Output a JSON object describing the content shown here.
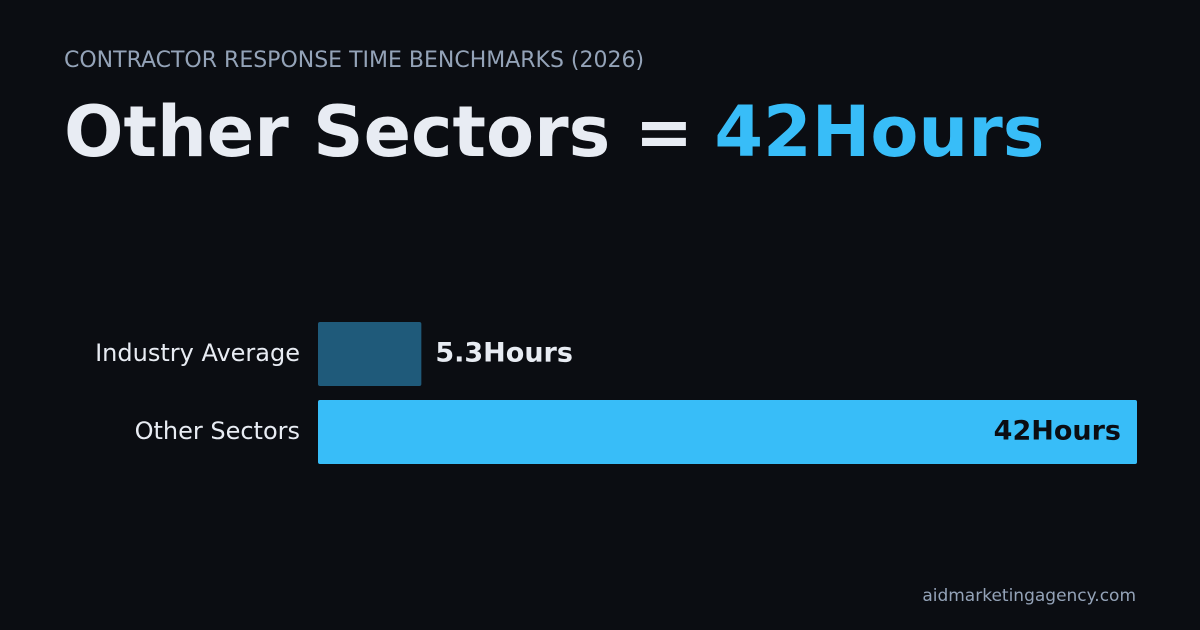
{
  "chart_data": {
    "type": "bar",
    "orientation": "horizontal",
    "subtitle": "CONTRACTOR RESPONSE TIME BENCHMARKS (2026)",
    "title": "Other Sectors =",
    "title_highlight": "42Hours",
    "categories": [
      "Industry Average",
      "Other Sectors"
    ],
    "values": [
      5.3,
      42
    ],
    "value_labels": [
      "5.3Hours",
      "42Hours"
    ],
    "colors": [
      "#1f5a7a",
      "#38bdf8"
    ],
    "footer": "aidmarketingagency.com"
  }
}
